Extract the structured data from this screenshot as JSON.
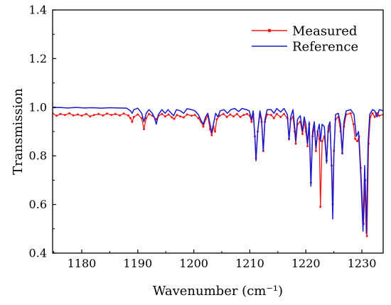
{
  "chart_data": {
    "type": "line",
    "xlabel": "Wavenumber (cm⁻¹)",
    "ylabel": "Transmission",
    "xlim": [
      1174.8,
      1233.8
    ],
    "ylim": [
      0.4,
      1.4
    ],
    "xticks": [
      1180,
      1190,
      1200,
      1210,
      1220,
      1230
    ],
    "xtick_labels": [
      "1180",
      "1190",
      "1200",
      "1210",
      "1220",
      "1230"
    ],
    "yticks": [
      0.4,
      0.6,
      0.8,
      1.0,
      1.2,
      1.4
    ],
    "ytick_labels": [
      "0.4",
      "0.6",
      "0.8",
      "1.0",
      "1.2",
      "1.4"
    ],
    "grid": false,
    "legend": {
      "position": "top-right"
    },
    "series": [
      {
        "name": "Measured",
        "color": "#ee1a1a",
        "marker": "circle",
        "points": [
          [
            1174.8,
            0.975
          ],
          [
            1175.5,
            0.965
          ],
          [
            1176.2,
            0.972
          ],
          [
            1177.0,
            0.968
          ],
          [
            1177.8,
            0.975
          ],
          [
            1178.5,
            0.966
          ],
          [
            1179.3,
            0.97
          ],
          [
            1180.0,
            0.965
          ],
          [
            1180.8,
            0.972
          ],
          [
            1181.5,
            0.962
          ],
          [
            1182.2,
            0.968
          ],
          [
            1183.0,
            0.972
          ],
          [
            1183.8,
            0.966
          ],
          [
            1184.5,
            0.974
          ],
          [
            1185.3,
            0.968
          ],
          [
            1186.0,
            0.972
          ],
          [
            1186.8,
            0.966
          ],
          [
            1187.5,
            0.974
          ],
          [
            1188.3,
            0.966
          ],
          [
            1188.7,
            0.955
          ],
          [
            1189.0,
            0.94
          ],
          [
            1189.3,
            0.96
          ],
          [
            1190.0,
            0.97
          ],
          [
            1190.7,
            0.955
          ],
          [
            1191.1,
            0.91
          ],
          [
            1191.5,
            0.955
          ],
          [
            1192.0,
            0.972
          ],
          [
            1192.6,
            0.965
          ],
          [
            1193.3,
            0.95
          ],
          [
            1193.7,
            0.965
          ],
          [
            1194.3,
            0.972
          ],
          [
            1194.9,
            0.962
          ],
          [
            1195.5,
            0.97
          ],
          [
            1196.1,
            0.958
          ],
          [
            1196.5,
            0.952
          ],
          [
            1197.0,
            0.968
          ],
          [
            1197.6,
            0.962
          ],
          [
            1198.2,
            0.958
          ],
          [
            1198.8,
            0.97
          ],
          [
            1199.6,
            0.965
          ],
          [
            1200.2,
            0.968
          ],
          [
            1200.8,
            0.955
          ],
          [
            1201.3,
            0.94
          ],
          [
            1201.7,
            0.92
          ],
          [
            1202.1,
            0.95
          ],
          [
            1202.5,
            0.965
          ],
          [
            1202.9,
            0.91
          ],
          [
            1203.2,
            0.885
          ],
          [
            1203.5,
            0.92
          ],
          [
            1203.8,
            0.9
          ],
          [
            1204.1,
            0.95
          ],
          [
            1204.6,
            0.965
          ],
          [
            1205.3,
            0.972
          ],
          [
            1205.9,
            0.96
          ],
          [
            1206.5,
            0.97
          ],
          [
            1207.1,
            0.962
          ],
          [
            1207.7,
            0.972
          ],
          [
            1208.3,
            0.96
          ],
          [
            1208.9,
            0.968
          ],
          [
            1209.5,
            0.972
          ],
          [
            1210.0,
            0.965
          ],
          [
            1210.3,
            0.94
          ],
          [
            1210.6,
            0.97
          ],
          [
            1210.9,
            0.88
          ],
          [
            1211.1,
            0.79
          ],
          [
            1211.4,
            0.9
          ],
          [
            1211.8,
            0.97
          ],
          [
            1212.1,
            0.94
          ],
          [
            1212.4,
            0.82
          ],
          [
            1212.7,
            0.94
          ],
          [
            1213.1,
            0.97
          ],
          [
            1213.8,
            0.968
          ],
          [
            1214.3,
            0.955
          ],
          [
            1214.8,
            0.972
          ],
          [
            1215.5,
            0.96
          ],
          [
            1216.1,
            0.972
          ],
          [
            1216.7,
            0.955
          ],
          [
            1217.0,
            0.87
          ],
          [
            1217.3,
            0.95
          ],
          [
            1217.7,
            0.96
          ],
          [
            1218.0,
            0.9
          ],
          [
            1218.2,
            0.85
          ],
          [
            1218.5,
            0.93
          ],
          [
            1219.0,
            0.94
          ],
          [
            1219.4,
            0.89
          ],
          [
            1219.7,
            0.94
          ],
          [
            1220.0,
            0.9
          ],
          [
            1220.3,
            0.84
          ],
          [
            1220.6,
            0.93
          ],
          [
            1220.9,
            0.69
          ],
          [
            1221.2,
            0.88
          ],
          [
            1221.5,
            0.92
          ],
          [
            1221.8,
            0.82
          ],
          [
            1222.1,
            0.9
          ],
          [
            1222.4,
            0.87
          ],
          [
            1222.6,
            0.59
          ],
          [
            1222.9,
            0.86
          ],
          [
            1223.3,
            0.88
          ],
          [
            1223.7,
            0.78
          ],
          [
            1224.0,
            0.9
          ],
          [
            1224.3,
            0.92
          ],
          [
            1224.6,
            0.76
          ],
          [
            1224.8,
            0.6
          ],
          [
            1225.0,
            0.82
          ],
          [
            1225.3,
            0.95
          ],
          [
            1225.8,
            0.96
          ],
          [
            1226.2,
            0.9
          ],
          [
            1226.5,
            0.81
          ],
          [
            1226.8,
            0.92
          ],
          [
            1227.2,
            0.97
          ],
          [
            1228.0,
            0.975
          ],
          [
            1228.5,
            0.93
          ],
          [
            1228.8,
            0.87
          ],
          [
            1229.2,
            0.86
          ],
          [
            1229.5,
            0.88
          ],
          [
            1229.8,
            0.75
          ],
          [
            1230.3,
            0.52
          ],
          [
            1230.6,
            0.7
          ],
          [
            1230.9,
            0.47
          ],
          [
            1231.2,
            0.85
          ],
          [
            1231.5,
            0.96
          ],
          [
            1231.9,
            0.975
          ],
          [
            1232.3,
            0.96
          ],
          [
            1232.7,
            0.975
          ],
          [
            1233.1,
            0.965
          ],
          [
            1233.8,
            0.97
          ]
        ]
      },
      {
        "name": "Reference",
        "color": "#1a1acc",
        "marker": "none",
        "points": [
          [
            1174.8,
            0.998
          ],
          [
            1176.0,
            0.999
          ],
          [
            1177.5,
            0.997
          ],
          [
            1179.0,
            0.999
          ],
          [
            1180.5,
            0.997
          ],
          [
            1182.0,
            0.998
          ],
          [
            1183.5,
            0.996
          ],
          [
            1185.0,
            0.998
          ],
          [
            1186.5,
            0.997
          ],
          [
            1188.0,
            0.996
          ],
          [
            1188.7,
            0.985
          ],
          [
            1189.0,
            0.975
          ],
          [
            1189.3,
            0.99
          ],
          [
            1190.0,
            0.996
          ],
          [
            1190.7,
            0.975
          ],
          [
            1191.1,
            0.94
          ],
          [
            1191.5,
            0.975
          ],
          [
            1192.0,
            0.99
          ],
          [
            1192.6,
            0.975
          ],
          [
            1193.0,
            0.955
          ],
          [
            1193.3,
            0.93
          ],
          [
            1193.7,
            0.97
          ],
          [
            1194.3,
            0.99
          ],
          [
            1194.9,
            0.975
          ],
          [
            1195.4,
            0.99
          ],
          [
            1196.0,
            0.975
          ],
          [
            1196.4,
            0.965
          ],
          [
            1196.9,
            0.99
          ],
          [
            1197.6,
            0.985
          ],
          [
            1198.2,
            0.975
          ],
          [
            1198.8,
            0.994
          ],
          [
            1199.6,
            0.99
          ],
          [
            1200.2,
            0.985
          ],
          [
            1200.8,
            0.97
          ],
          [
            1201.3,
            0.945
          ],
          [
            1201.7,
            0.93
          ],
          [
            1202.1,
            0.96
          ],
          [
            1202.5,
            0.975
          ],
          [
            1202.9,
            0.93
          ],
          [
            1203.2,
            0.895
          ],
          [
            1203.5,
            0.93
          ],
          [
            1203.9,
            0.975
          ],
          [
            1204.3,
            0.96
          ],
          [
            1204.7,
            0.985
          ],
          [
            1205.4,
            0.99
          ],
          [
            1206.0,
            0.975
          ],
          [
            1206.6,
            0.99
          ],
          [
            1207.3,
            0.995
          ],
          [
            1208.0,
            0.982
          ],
          [
            1208.6,
            0.995
          ],
          [
            1209.4,
            0.99
          ],
          [
            1209.9,
            0.985
          ],
          [
            1210.3,
            0.95
          ],
          [
            1210.6,
            0.985
          ],
          [
            1210.9,
            0.88
          ],
          [
            1211.1,
            0.78
          ],
          [
            1211.4,
            0.9
          ],
          [
            1211.8,
            0.985
          ],
          [
            1212.1,
            0.95
          ],
          [
            1212.4,
            0.82
          ],
          [
            1212.7,
            0.95
          ],
          [
            1213.1,
            0.99
          ],
          [
            1213.8,
            0.99
          ],
          [
            1214.3,
            0.975
          ],
          [
            1214.8,
            0.995
          ],
          [
            1215.5,
            0.98
          ],
          [
            1216.1,
            0.995
          ],
          [
            1216.7,
            0.97
          ],
          [
            1217.0,
            0.865
          ],
          [
            1217.3,
            0.96
          ],
          [
            1217.7,
            0.99
          ],
          [
            1218.0,
            0.92
          ],
          [
            1218.2,
            0.86
          ],
          [
            1218.5,
            0.95
          ],
          [
            1219.0,
            0.965
          ],
          [
            1219.4,
            0.9
          ],
          [
            1219.7,
            0.96
          ],
          [
            1220.0,
            0.93
          ],
          [
            1220.3,
            0.85
          ],
          [
            1220.6,
            0.94
          ],
          [
            1220.9,
            0.675
          ],
          [
            1221.2,
            0.9
          ],
          [
            1221.5,
            0.94
          ],
          [
            1221.8,
            0.83
          ],
          [
            1222.1,
            0.9
          ],
          [
            1222.4,
            0.93
          ],
          [
            1222.6,
            0.86
          ],
          [
            1222.9,
            0.93
          ],
          [
            1223.3,
            0.92
          ],
          [
            1223.7,
            0.77
          ],
          [
            1224.0,
            0.92
          ],
          [
            1224.3,
            0.94
          ],
          [
            1224.6,
            0.75
          ],
          [
            1224.8,
            0.54
          ],
          [
            1225.0,
            0.8
          ],
          [
            1225.3,
            0.97
          ],
          [
            1225.8,
            0.975
          ],
          [
            1226.2,
            0.93
          ],
          [
            1226.5,
            0.81
          ],
          [
            1226.8,
            0.94
          ],
          [
            1227.2,
            0.985
          ],
          [
            1228.0,
            0.99
          ],
          [
            1228.6,
            0.97
          ],
          [
            1229.0,
            0.88
          ],
          [
            1229.4,
            0.9
          ],
          [
            1229.8,
            0.72
          ],
          [
            1230.2,
            0.49
          ],
          [
            1230.5,
            0.76
          ],
          [
            1230.8,
            0.48
          ],
          [
            1231.1,
            0.85
          ],
          [
            1231.4,
            0.97
          ],
          [
            1231.9,
            0.99
          ],
          [
            1232.3,
            0.985
          ],
          [
            1232.7,
            0.96
          ],
          [
            1233.1,
            0.99
          ],
          [
            1233.8,
            0.985
          ]
        ]
      }
    ]
  }
}
